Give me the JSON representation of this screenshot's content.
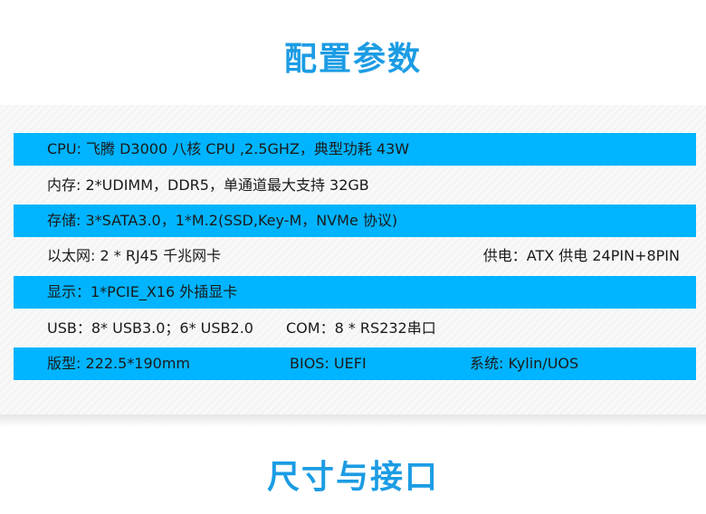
{
  "titles": {
    "top": "配置参数",
    "bottom": "尺寸与接口"
  },
  "colors": {
    "title": "#1c9ce4",
    "row_highlight": "#00b4ff"
  },
  "rows": [
    {
      "a": "CPU: 飞腾 D3000 八核 CPU ,2.5GHZ，典型功耗 43W"
    },
    {
      "a": "内存: 2*UDIMM，DDR5，单通道最大支持 32GB"
    },
    {
      "a": "存储: 3*SATA3.0，1*M.2(SSD,Key-M，NVMe 协议)"
    },
    {
      "a": "以太网: 2 * RJ45 千兆网卡",
      "b": "供电：ATX 供电 24PIN+8PIN"
    },
    {
      "a": "显示：1*PCIE_X16 外插显卡"
    },
    {
      "a": "USB：8* USB3.0；6* USB2.0",
      "b": "COM：8 * RS232串口"
    },
    {
      "a": "版型: 222.5*190mm",
      "b": "BIOS: UEFI",
      "c": "系统: Kylin/UOS"
    }
  ]
}
